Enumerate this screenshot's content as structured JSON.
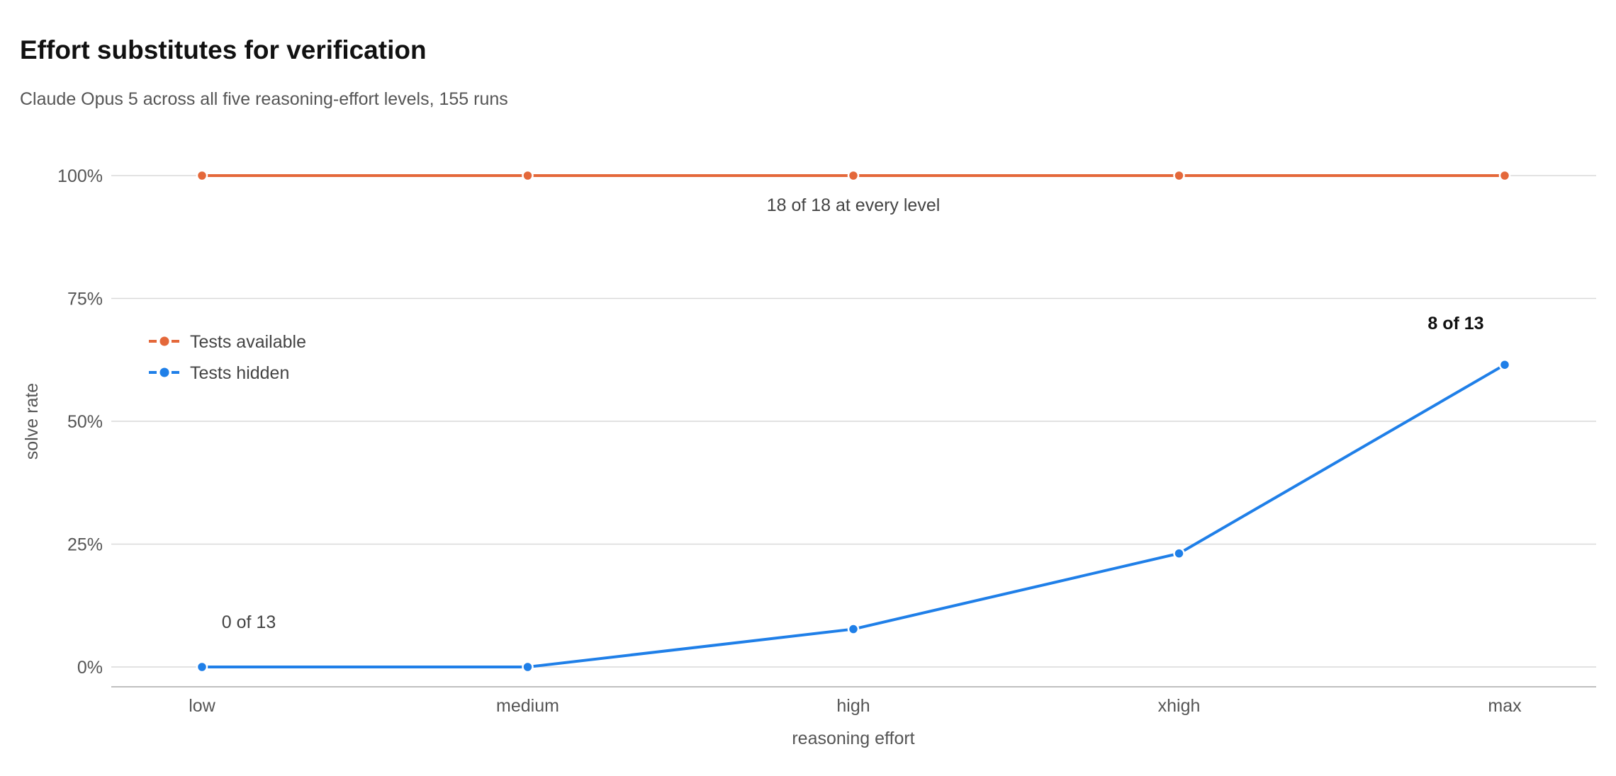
{
  "chart_data": {
    "type": "line",
    "title": "Effort substitutes for verification",
    "subtitle": "Claude Opus 5 across all five reasoning-effort levels, 155 runs",
    "xlabel": "reasoning effort",
    "ylabel": "solve rate",
    "categories": [
      "low",
      "medium",
      "high",
      "xhigh",
      "max"
    ],
    "ylim": [
      0,
      100
    ],
    "yticks": [
      0,
      25,
      50,
      75,
      100
    ],
    "ytick_labels": [
      "0%",
      "25%",
      "50%",
      "75%",
      "100%"
    ],
    "grid": true,
    "legend_position": "left",
    "series": [
      {
        "name": "Tests available",
        "color": "#E4683A",
        "values": [
          100,
          100,
          100,
          100,
          100
        ]
      },
      {
        "name": "Tests hidden",
        "color": "#1F7FE8",
        "values": [
          0,
          0,
          7.7,
          23.1,
          61.5
        ]
      }
    ],
    "annotations": [
      {
        "text": "18 of 18 at every level",
        "series": 0,
        "category": "high",
        "bold": false
      },
      {
        "text": "0 of 13",
        "series": 1,
        "category": "low",
        "bold": false
      },
      {
        "text": "8 of 13",
        "series": 1,
        "category": "max",
        "bold": true
      }
    ]
  }
}
